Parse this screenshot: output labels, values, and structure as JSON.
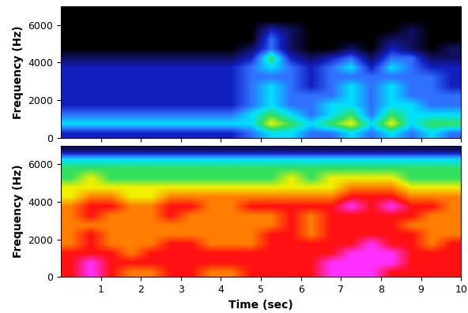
{
  "chart_data": [
    {
      "type": "heatmap",
      "ylabel": "Frequency (Hz)",
      "tick_labels": "y",
      "xlim": [
        0,
        10
      ],
      "xticks": [
        1,
        2,
        3,
        4,
        5,
        6,
        7,
        8,
        9,
        10
      ],
      "ylim": [
        0,
        7000
      ],
      "yticks": [
        0,
        2000,
        4000,
        6000
      ],
      "colors": [
        "#000000",
        "#101060",
        "#1020c0",
        "#3070ff",
        "#00e0ff",
        "#30e060",
        "#f0f000",
        "#ff8000",
        "#ff1010",
        "#ff30ff"
      ],
      "cells": [
        [
          2,
          2,
          2,
          2,
          2,
          2,
          2,
          2,
          2,
          3,
          4,
          4,
          3,
          3,
          4,
          3,
          4,
          3,
          4,
          3
        ],
        [
          4,
          4,
          4,
          4,
          4,
          4,
          4,
          4,
          4,
          4,
          6,
          5,
          4,
          5,
          6,
          4,
          6,
          4,
          5,
          5
        ],
        [
          3,
          3,
          3,
          3,
          3,
          3,
          3,
          3,
          3,
          4,
          5,
          4,
          3,
          4,
          5,
          3,
          5,
          4,
          4,
          4
        ],
        [
          2,
          2,
          2,
          2,
          2,
          2,
          2,
          2,
          2,
          3,
          4,
          3,
          3,
          4,
          4,
          3,
          4,
          4,
          3,
          3
        ],
        [
          2,
          2,
          2,
          2,
          2,
          2,
          2,
          2,
          2,
          3,
          4,
          3,
          3,
          3,
          4,
          3,
          4,
          3,
          3,
          3
        ],
        [
          2,
          2,
          2,
          2,
          2,
          2,
          2,
          2,
          2,
          3,
          4,
          3,
          2,
          3,
          4,
          3,
          4,
          3,
          3,
          2
        ],
        [
          2,
          2,
          2,
          2,
          2,
          2,
          2,
          2,
          2,
          3,
          3,
          3,
          2,
          3,
          3,
          3,
          3,
          3,
          3,
          2
        ],
        [
          2,
          2,
          2,
          2,
          2,
          2,
          2,
          2,
          2,
          3,
          4,
          3,
          2,
          3,
          4,
          2,
          4,
          3,
          2,
          2
        ],
        [
          1,
          1,
          1,
          1,
          1,
          1,
          1,
          1,
          1,
          2,
          5,
          2,
          1,
          2,
          3,
          1,
          3,
          3,
          1,
          1
        ],
        [
          0,
          0,
          0,
          0,
          0,
          0,
          0,
          0,
          0,
          1,
          3,
          1,
          0,
          0,
          1,
          0,
          2,
          1,
          0,
          1
        ],
        [
          0,
          0,
          0,
          0,
          0,
          0,
          0,
          0,
          0,
          0,
          3,
          1,
          0,
          0,
          0,
          0,
          1,
          1,
          0,
          0
        ],
        [
          0,
          0,
          0,
          0,
          0,
          0,
          0,
          0,
          0,
          0,
          2,
          1,
          0,
          0,
          0,
          0,
          0,
          1,
          0,
          0
        ],
        [
          0,
          0,
          0,
          0,
          0,
          0,
          0,
          0,
          0,
          0,
          0,
          0,
          0,
          0,
          0,
          0,
          0,
          0,
          0,
          0
        ],
        [
          0,
          0,
          0,
          0,
          0,
          0,
          0,
          0,
          0,
          0,
          0,
          0,
          0,
          0,
          0,
          0,
          0,
          0,
          0,
          0
        ]
      ]
    },
    {
      "type": "heatmap",
      "xlabel": "Time (sec)",
      "ylabel": "Frequency (Hz)",
      "xlim": [
        0,
        10
      ],
      "xticks": [
        1,
        2,
        3,
        4,
        5,
        6,
        7,
        8,
        9,
        10
      ],
      "ylim": [
        0,
        7000
      ],
      "yticks": [
        0,
        2000,
        4000,
        6000
      ],
      "colors": [
        "#000000",
        "#101060",
        "#1020c0",
        "#3070ff",
        "#00e0ff",
        "#30e060",
        "#f0f000",
        "#ff8000",
        "#ff1010",
        "#ff30ff"
      ],
      "cells": [
        [
          8,
          9,
          8,
          7,
          7,
          8,
          8,
          7,
          7,
          8,
          8,
          8,
          8,
          9,
          9,
          9,
          8,
          8,
          8,
          8
        ],
        [
          8,
          9,
          8,
          8,
          8,
          8,
          8,
          8,
          8,
          8,
          8,
          8,
          8,
          9,
          9,
          9,
          9,
          8,
          8,
          8
        ],
        [
          8,
          8,
          8,
          7,
          8,
          8,
          8,
          8,
          8,
          8,
          8,
          8,
          8,
          8,
          9,
          9,
          9,
          8,
          8,
          8
        ],
        [
          7,
          8,
          7,
          7,
          7,
          8,
          8,
          7,
          7,
          7,
          8,
          8,
          8,
          8,
          8,
          9,
          8,
          8,
          7,
          8
        ],
        [
          7,
          8,
          7,
          7,
          7,
          7,
          7,
          7,
          7,
          7,
          8,
          8,
          7,
          8,
          8,
          8,
          8,
          8,
          7,
          7
        ],
        [
          7,
          7,
          7,
          7,
          7,
          7,
          7,
          7,
          7,
          7,
          7,
          8,
          7,
          8,
          8,
          8,
          8,
          7,
          7,
          7
        ],
        [
          7,
          8,
          7,
          7,
          7,
          8,
          7,
          7,
          7,
          7,
          7,
          8,
          7,
          8,
          8,
          8,
          8,
          8,
          7,
          7
        ],
        [
          7,
          8,
          8,
          7,
          7,
          8,
          8,
          7,
          7,
          8,
          8,
          8,
          8,
          8,
          9,
          8,
          9,
          8,
          8,
          7
        ],
        [
          6,
          7,
          7,
          6,
          6,
          7,
          7,
          7,
          7,
          7,
          7,
          7,
          7,
          7,
          8,
          8,
          8,
          7,
          7,
          7
        ],
        [
          6,
          6,
          6,
          6,
          6,
          6,
          6,
          6,
          6,
          6,
          6,
          6,
          6,
          6,
          7,
          7,
          7,
          6,
          6,
          6
        ],
        [
          5,
          6,
          5,
          5,
          5,
          5,
          5,
          5,
          5,
          5,
          5,
          6,
          5,
          6,
          6,
          6,
          6,
          5,
          5,
          5
        ],
        [
          5,
          5,
          5,
          5,
          5,
          5,
          5,
          5,
          5,
          5,
          5,
          5,
          5,
          5,
          5,
          5,
          5,
          5,
          5,
          5
        ],
        [
          4,
          4,
          4,
          4,
          4,
          4,
          4,
          4,
          4,
          4,
          4,
          4,
          4,
          4,
          4,
          4,
          4,
          4,
          4,
          4
        ],
        [
          1,
          1,
          1,
          1,
          1,
          1,
          1,
          1,
          1,
          1,
          1,
          1,
          1,
          1,
          1,
          1,
          1,
          1,
          1,
          1
        ]
      ]
    }
  ]
}
